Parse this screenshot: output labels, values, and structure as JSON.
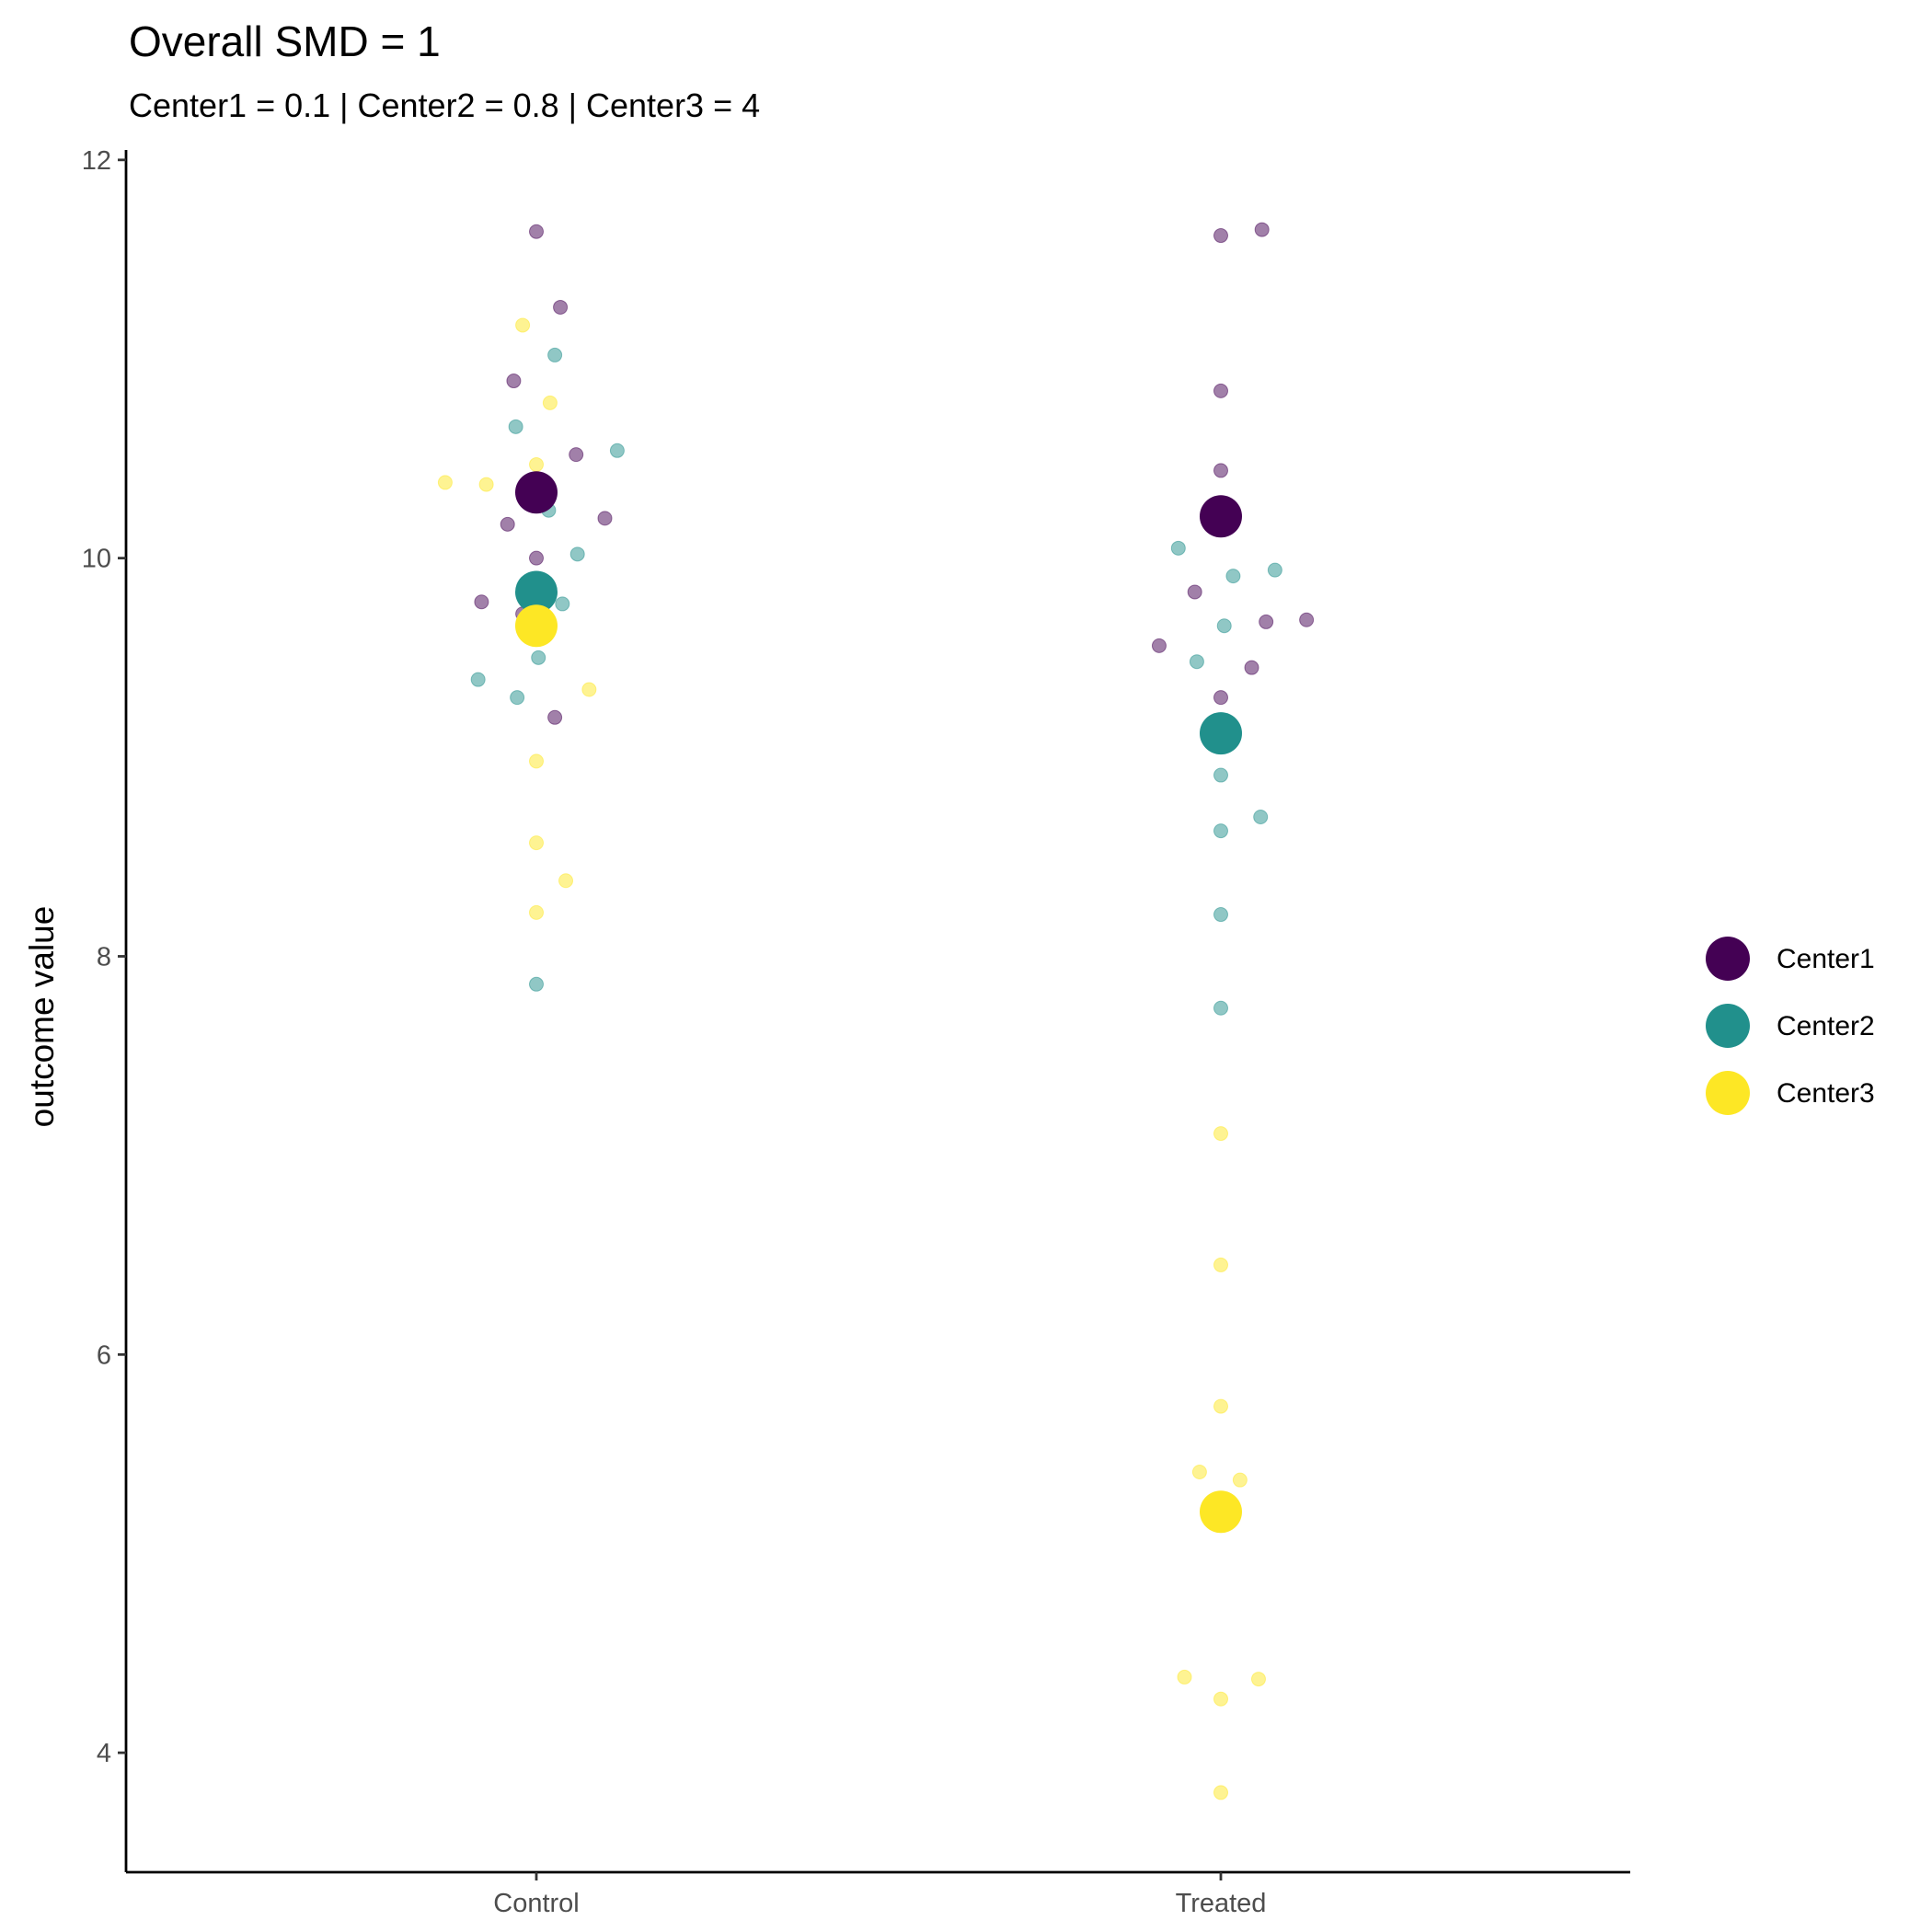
{
  "chart_data": {
    "type": "scatter",
    "title": "Overall SMD = 1",
    "subtitle": "Center1 = 0.1 | Center2 = 0.8 | Center3 = 4",
    "xlabel": "",
    "ylabel": "outcome value",
    "categories": [
      "Control",
      "Treated"
    ],
    "ylim": [
      3.4,
      12.05
    ],
    "yticks": [
      4,
      6,
      8,
      10,
      12
    ],
    "grid": false,
    "legend_position": "right",
    "series": [
      {
        "name": "Center1",
        "color": "#440154",
        "means": [
          {
            "x": "Control",
            "y": 10.33
          },
          {
            "x": "Treated",
            "y": 10.21
          }
        ],
        "points": [
          {
            "x": "Control",
            "jitter": 0.0,
            "y": 11.64
          },
          {
            "x": "Control",
            "jitter": 0.035,
            "y": 11.26
          },
          {
            "x": "Control",
            "jitter": -0.033,
            "y": 10.89
          },
          {
            "x": "Control",
            "jitter": 0.058,
            "y": 10.52
          },
          {
            "x": "Control",
            "jitter": 0.1,
            "y": 10.2
          },
          {
            "x": "Control",
            "jitter": -0.042,
            "y": 10.17
          },
          {
            "x": "Control",
            "jitter": 0.0,
            "y": 10.0
          },
          {
            "x": "Control",
            "jitter": -0.08,
            "y": 9.78
          },
          {
            "x": "Control",
            "jitter": -0.02,
            "y": 9.72
          },
          {
            "x": "Control",
            "jitter": 0.027,
            "y": 9.2
          },
          {
            "x": "Treated",
            "jitter": 0.0,
            "y": 11.62
          },
          {
            "x": "Treated",
            "jitter": 0.06,
            "y": 11.65
          },
          {
            "x": "Treated",
            "jitter": 0.0,
            "y": 10.84
          },
          {
            "x": "Treated",
            "jitter": 0.0,
            "y": 10.44
          },
          {
            "x": "Treated",
            "jitter": -0.038,
            "y": 9.83
          },
          {
            "x": "Treated",
            "jitter": 0.125,
            "y": 9.69
          },
          {
            "x": "Treated",
            "jitter": 0.066,
            "y": 9.68
          },
          {
            "x": "Treated",
            "jitter": -0.09,
            "y": 9.56
          },
          {
            "x": "Treated",
            "jitter": 0.045,
            "y": 9.45
          },
          {
            "x": "Treated",
            "jitter": 0.0,
            "y": 9.3
          }
        ]
      },
      {
        "name": "Center2",
        "color": "#21908C",
        "means": [
          {
            "x": "Control",
            "y": 9.83
          },
          {
            "x": "Treated",
            "y": 9.12
          }
        ],
        "points": [
          {
            "x": "Control",
            "jitter": 0.027,
            "y": 11.02
          },
          {
            "x": "Control",
            "jitter": -0.03,
            "y": 10.66
          },
          {
            "x": "Control",
            "jitter": 0.118,
            "y": 10.54
          },
          {
            "x": "Control",
            "jitter": 0.018,
            "y": 10.24
          },
          {
            "x": "Control",
            "jitter": 0.06,
            "y": 10.02
          },
          {
            "x": "Control",
            "jitter": 0.038,
            "y": 9.77
          },
          {
            "x": "Control",
            "jitter": 0.003,
            "y": 9.5
          },
          {
            "x": "Control",
            "jitter": -0.085,
            "y": 9.39
          },
          {
            "x": "Control",
            "jitter": -0.028,
            "y": 9.3
          },
          {
            "x": "Control",
            "jitter": 0.0,
            "y": 7.86
          },
          {
            "x": "Treated",
            "jitter": -0.062,
            "y": 10.05
          },
          {
            "x": "Treated",
            "jitter": 0.079,
            "y": 9.94
          },
          {
            "x": "Treated",
            "jitter": 0.018,
            "y": 9.91
          },
          {
            "x": "Treated",
            "jitter": 0.005,
            "y": 9.66
          },
          {
            "x": "Treated",
            "jitter": -0.035,
            "y": 9.48
          },
          {
            "x": "Treated",
            "jitter": 0.0,
            "y": 8.91
          },
          {
            "x": "Treated",
            "jitter": 0.058,
            "y": 8.7
          },
          {
            "x": "Treated",
            "jitter": 0.0,
            "y": 8.63
          },
          {
            "x": "Treated",
            "jitter": 0.0,
            "y": 8.21
          },
          {
            "x": "Treated",
            "jitter": 0.0,
            "y": 7.74
          }
        ]
      },
      {
        "name": "Center3",
        "color": "#FDE725",
        "means": [
          {
            "x": "Control",
            "y": 9.66
          },
          {
            "x": "Treated",
            "y": 5.21
          }
        ],
        "points": [
          {
            "x": "Control",
            "jitter": -0.02,
            "y": 11.17
          },
          {
            "x": "Control",
            "jitter": 0.02,
            "y": 10.78
          },
          {
            "x": "Control",
            "jitter": 0.0,
            "y": 10.47
          },
          {
            "x": "Control",
            "jitter": -0.133,
            "y": 10.38
          },
          {
            "x": "Control",
            "jitter": -0.073,
            "y": 10.37
          },
          {
            "x": "Control",
            "jitter": 0.077,
            "y": 9.34
          },
          {
            "x": "Control",
            "jitter": 0.0,
            "y": 8.98
          },
          {
            "x": "Control",
            "jitter": 0.0,
            "y": 8.57
          },
          {
            "x": "Control",
            "jitter": 0.043,
            "y": 8.38
          },
          {
            "x": "Control",
            "jitter": 0.0,
            "y": 8.22
          },
          {
            "x": "Treated",
            "jitter": 0.0,
            "y": 7.11
          },
          {
            "x": "Treated",
            "jitter": 0.0,
            "y": 6.45
          },
          {
            "x": "Treated",
            "jitter": 0.0,
            "y": 5.74
          },
          {
            "x": "Treated",
            "jitter": -0.031,
            "y": 5.41
          },
          {
            "x": "Treated",
            "jitter": 0.028,
            "y": 5.37
          },
          {
            "x": "Treated",
            "jitter": -0.053,
            "y": 4.38
          },
          {
            "x": "Treated",
            "jitter": 0.055,
            "y": 4.37
          },
          {
            "x": "Treated",
            "jitter": 0.0,
            "y": 4.27
          },
          {
            "x": "Treated",
            "jitter": 0.0,
            "y": 3.8
          }
        ]
      }
    ]
  }
}
